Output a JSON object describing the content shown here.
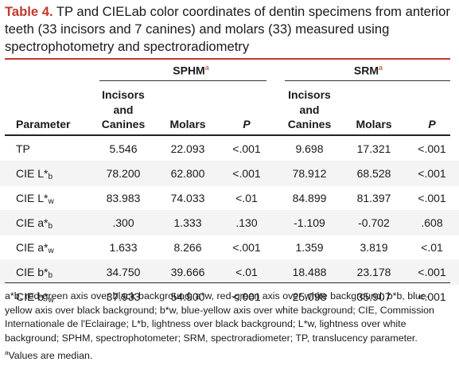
{
  "caption": {
    "label": "Table 4.",
    "text": "TP and CIELab color coordinates of dentin specimens from anterior teeth (33 incisors and 7 canines) and molars (33) measured using spectrophotometry and spectroradiometry"
  },
  "groups": {
    "sphm": "SPHM",
    "srm": "SRM",
    "sup": "a"
  },
  "headers": {
    "parameter": "Parameter",
    "incisors_line1": "Incisors",
    "incisors_line2": "and",
    "incisors_line3": "Canines",
    "molars": "Molars",
    "p": "P"
  },
  "rows": [
    {
      "param": "TP",
      "sub": "",
      "sphm_ic": "5.546",
      "sphm_m": "22.093",
      "sphm_p": "<.001",
      "srm_ic": "9.698",
      "srm_m": "17.321",
      "srm_p": "<.001"
    },
    {
      "param": "CIE L*",
      "sub": "b",
      "sphm_ic": "78.200",
      "sphm_m": "62.800",
      "sphm_p": "<.001",
      "srm_ic": "78.912",
      "srm_m": "68.528",
      "srm_p": "<.001"
    },
    {
      "param": "CIE L*",
      "sub": "w",
      "sphm_ic": "83.983",
      "sphm_m": "74.033",
      "sphm_p": "<.01",
      "srm_ic": "84.899",
      "srm_m": "81.397",
      "srm_p": "<.001"
    },
    {
      "param": "CIE a*",
      "sub": "b",
      "sphm_ic": ".300",
      "sphm_m": "1.333",
      "sphm_p": ".130",
      "srm_ic": "-1.109",
      "srm_m": "-0.702",
      "srm_p": ".608"
    },
    {
      "param": "CIE a*",
      "sub": "w",
      "sphm_ic": "1.633",
      "sphm_m": "8.266",
      "sphm_p": "<.001",
      "srm_ic": "1.359",
      "srm_m": "3.819",
      "srm_p": "<.01"
    },
    {
      "param": "CIE b*",
      "sub": "b",
      "sphm_ic": "34.750",
      "sphm_m": "39.666",
      "sphm_p": "<.01",
      "srm_ic": "18.488",
      "srm_m": "23.178",
      "srm_p": "<.001"
    },
    {
      "param": "CIE b*",
      "sub": "w",
      "sphm_ic": "37.933",
      "sphm_m": "54.900",
      "sphm_p": "<.001",
      "srm_ic": "25.098",
      "srm_m": "35.907",
      "srm_p": "<.001"
    }
  ],
  "footnotes": {
    "abbrev": "a*b, red-green axis over black background; a*w, red-green axis over white background; b*b, blue-yellow axis over black background; b*w, blue-yellow axis over white background; CIE, Commission Internationale de l'Eclairage; L*b, lightness over black background; L*w, lightness over white background; SPHM, spectrophotometer; SRM, spectroradiometer; TP, translucency parameter.",
    "median_sup": "a",
    "median": "Values are median."
  },
  "colors": {
    "accent": "#c0392b",
    "shade": "#f4f4f4",
    "text": "#1a1a1a"
  }
}
